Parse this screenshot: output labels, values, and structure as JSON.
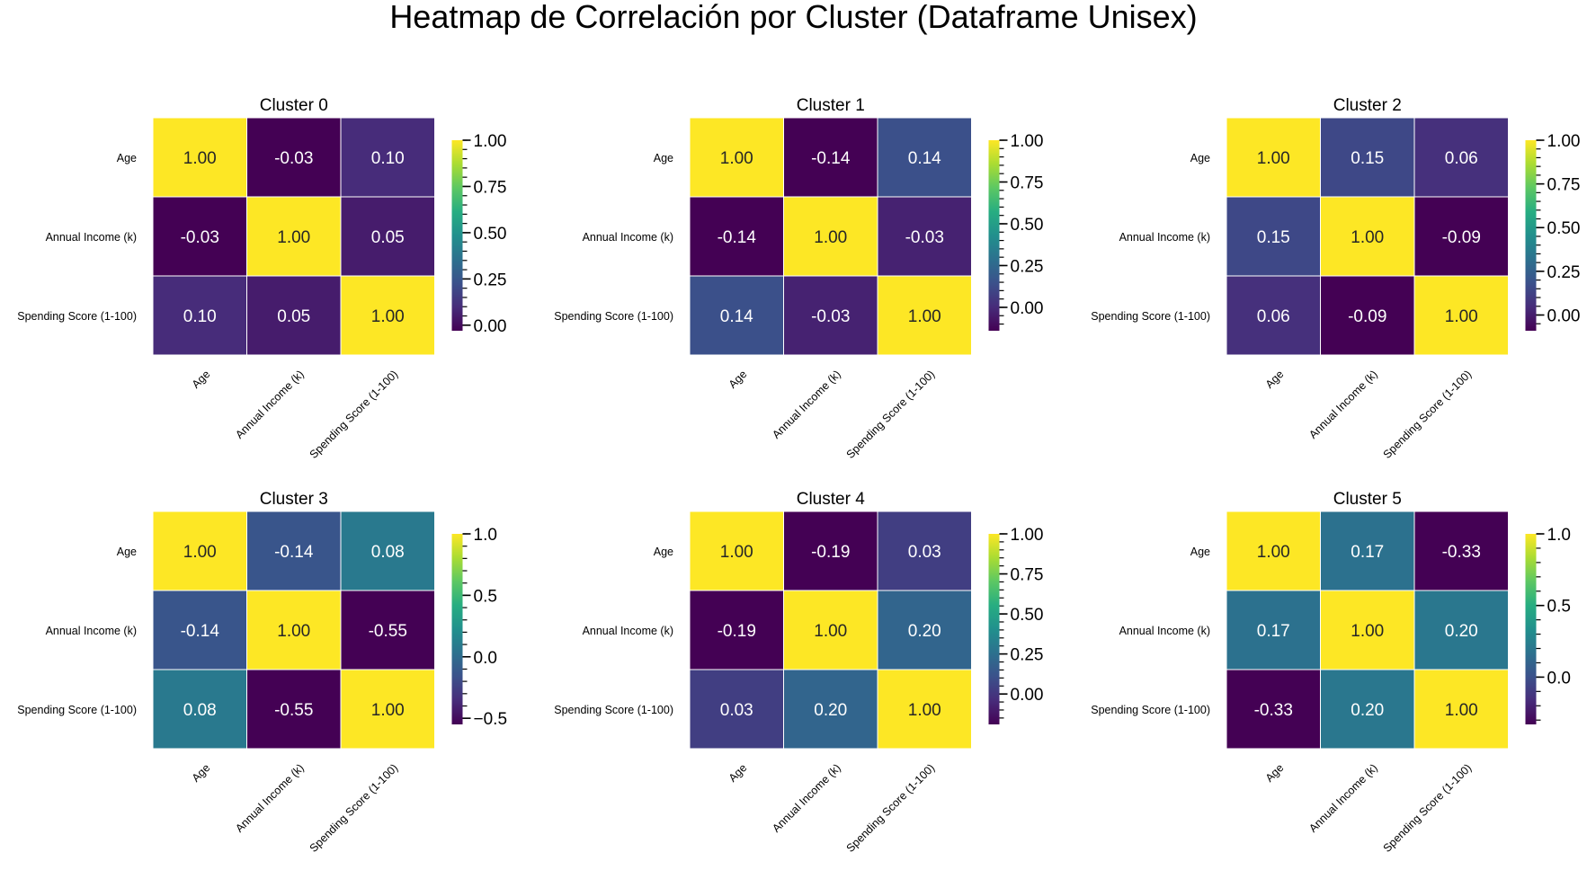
{
  "figure_title": "Heatmap de Correlación por Cluster (Dataframe Unisex)",
  "colormap": "viridis",
  "chart_data": [
    {
      "type": "heatmap",
      "title": "Cluster 0",
      "labels": [
        "Age",
        "Annual Income (k)",
        "Spending Score (1-100)"
      ],
      "matrix": [
        [
          1.0,
          -0.03,
          0.1
        ],
        [
          -0.03,
          1.0,
          0.05
        ],
        [
          0.1,
          0.05,
          1.0
        ]
      ],
      "colorbar": {
        "min": -0.03,
        "max": 1.0,
        "ticks": [
          "0.00",
          "0.25",
          "0.50",
          "0.75",
          "1.00"
        ]
      }
    },
    {
      "type": "heatmap",
      "title": "Cluster 1",
      "labels": [
        "Age",
        "Annual Income (k)",
        "Spending Score (1-100)"
      ],
      "matrix": [
        [
          1.0,
          -0.14,
          0.14
        ],
        [
          -0.14,
          1.0,
          -0.03
        ],
        [
          0.14,
          -0.03,
          1.0
        ]
      ],
      "colorbar": {
        "min": -0.14,
        "max": 1.0,
        "ticks": [
          "0.00",
          "0.25",
          "0.50",
          "0.75",
          "1.00"
        ]
      }
    },
    {
      "type": "heatmap",
      "title": "Cluster 2",
      "labels": [
        "Age",
        "Annual Income (k)",
        "Spending Score (1-100)"
      ],
      "matrix": [
        [
          1.0,
          0.15,
          0.06
        ],
        [
          0.15,
          1.0,
          -0.09
        ],
        [
          0.06,
          -0.09,
          1.0
        ]
      ],
      "colorbar": {
        "min": -0.09,
        "max": 1.0,
        "ticks": [
          "0.00",
          "0.25",
          "0.50",
          "0.75",
          "1.00"
        ]
      }
    },
    {
      "type": "heatmap",
      "title": "Cluster 3",
      "labels": [
        "Age",
        "Annual Income (k)",
        "Spending Score (1-100)"
      ],
      "matrix": [
        [
          1.0,
          -0.14,
          0.08
        ],
        [
          -0.14,
          1.0,
          -0.55
        ],
        [
          0.08,
          -0.55,
          1.0
        ]
      ],
      "colorbar": {
        "min": -0.55,
        "max": 1.0,
        "ticks": [
          "−0.5",
          "0.0",
          "0.5",
          "1.0"
        ]
      }
    },
    {
      "type": "heatmap",
      "title": "Cluster 4",
      "labels": [
        "Age",
        "Annual Income (k)",
        "Spending Score (1-100)"
      ],
      "matrix": [
        [
          1.0,
          -0.19,
          0.03
        ],
        [
          -0.19,
          1.0,
          0.2
        ],
        [
          0.03,
          0.2,
          1.0
        ]
      ],
      "colorbar": {
        "min": -0.19,
        "max": 1.0,
        "ticks": [
          "0.00",
          "0.25",
          "0.50",
          "0.75",
          "1.00"
        ]
      }
    },
    {
      "type": "heatmap",
      "title": "Cluster 5",
      "labels": [
        "Age",
        "Annual Income (k)",
        "Spending Score (1-100)"
      ],
      "matrix": [
        [
          1.0,
          0.17,
          -0.33
        ],
        [
          0.17,
          1.0,
          0.2
        ],
        [
          -0.33,
          0.2,
          1.0
        ]
      ],
      "colorbar": {
        "min": -0.33,
        "max": 1.0,
        "ticks": [
          "0.0",
          "0.5",
          "1.0"
        ]
      }
    }
  ]
}
